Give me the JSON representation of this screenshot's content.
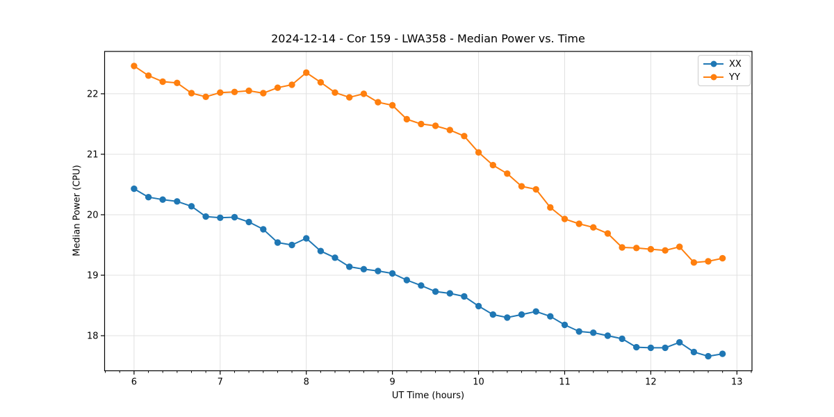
{
  "chart_data": {
    "type": "line",
    "title": "2024-12-14 - Cor 159 - LWA358 - Median Power vs. Time",
    "xlabel": "UT Time (hours)",
    "ylabel": "Median Power (CPU)",
    "xlim": [
      5.658,
      13.175
    ],
    "ylim": [
      17.42,
      22.7
    ],
    "x_major_ticks": [
      6,
      7,
      8,
      9,
      10,
      11,
      12,
      13
    ],
    "y_major_ticks": [
      18,
      19,
      20,
      21,
      22
    ],
    "x_minor_divisions": 6,
    "grid": true,
    "legend_position": "top-right",
    "x": [
      6.0,
      6.167,
      6.333,
      6.5,
      6.667,
      6.833,
      7.0,
      7.167,
      7.333,
      7.5,
      7.667,
      7.833,
      8.0,
      8.167,
      8.333,
      8.5,
      8.667,
      8.833,
      9.0,
      9.167,
      9.333,
      9.5,
      9.667,
      9.833,
      10.0,
      10.167,
      10.333,
      10.5,
      10.667,
      10.833,
      11.0,
      11.167,
      11.333,
      11.5,
      11.667,
      11.833,
      12.0,
      12.167,
      12.333,
      12.5,
      12.667,
      12.833
    ],
    "series": [
      {
        "name": "XX",
        "color": "#1f77b4",
        "values": [
          20.43,
          20.29,
          20.25,
          20.22,
          20.14,
          19.97,
          19.95,
          19.96,
          19.88,
          19.76,
          19.54,
          19.5,
          19.61,
          19.4,
          19.29,
          19.14,
          19.1,
          19.07,
          19.03,
          18.92,
          18.83,
          18.73,
          18.7,
          18.65,
          18.49,
          18.35,
          18.3,
          18.35,
          18.4,
          18.32,
          18.18,
          18.07,
          18.05,
          18.0,
          17.95,
          17.81,
          17.8,
          17.8,
          17.89,
          17.73,
          17.66,
          17.7
        ]
      },
      {
        "name": "YY",
        "color": "#ff7f0e",
        "values": [
          22.46,
          22.3,
          22.2,
          22.18,
          22.01,
          21.95,
          22.02,
          22.03,
          22.05,
          22.01,
          22.1,
          22.15,
          22.35,
          22.19,
          22.02,
          21.94,
          22.0,
          21.86,
          21.81,
          21.58,
          21.5,
          21.47,
          21.4,
          21.3,
          21.03,
          20.82,
          20.68,
          20.47,
          20.42,
          20.12,
          19.93,
          19.85,
          19.79,
          19.69,
          19.46,
          19.45,
          19.43,
          19.41,
          19.47,
          19.21,
          19.23,
          19.28
        ]
      }
    ],
    "style": {
      "grid_color": "#e0e0e0",
      "spine_color": "#000000",
      "tick_color": "#000000",
      "background": "#ffffff"
    }
  }
}
